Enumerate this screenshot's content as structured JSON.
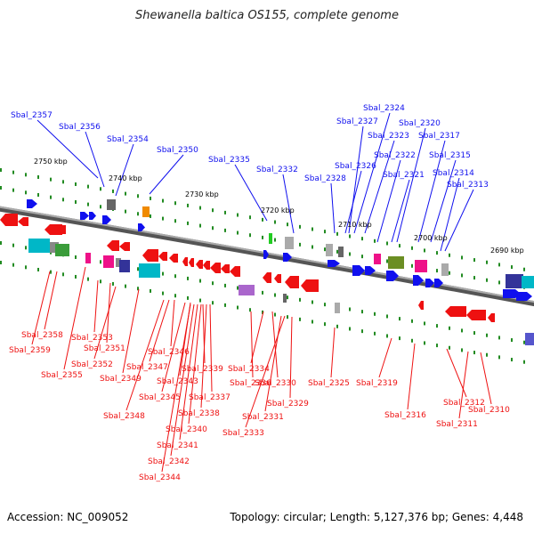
{
  "title": "Shewanella baltica OS155, complete genome",
  "footer": {
    "accession": "Accession: NC_009052",
    "summary": "Topology: circular; Length: 5,127,376 bp; Genes: 4,448"
  },
  "colors": {
    "forward": "#1010ee",
    "reverse": "#ee1111",
    "backbone": "#808080",
    "tick": "#228b22"
  },
  "scale": [
    "2750 kbp",
    "2740 kbp",
    "2730 kbp",
    "2720 kbp",
    "2710 kbp",
    "2700 kbp",
    "2690 kbp"
  ],
  "forward_labels": [
    "Sbal_2357",
    "Sbal_2356",
    "Sbal_2354",
    "Sbal_2350",
    "Sbal_2335",
    "Sbal_2332",
    "Sbal_2328",
    "Sbal_2327",
    "Sbal_2326",
    "Sbal_2324",
    "Sbal_2323",
    "Sbal_2322",
    "Sbal_2321",
    "Sbal_2320",
    "Sbal_2317",
    "Sbal_2315",
    "Sbal_2314",
    "Sbal_2313"
  ],
  "reverse_labels": [
    "Sbal_2358",
    "Sbal_2359",
    "Sbal_2353",
    "Sbal_2351",
    "Sbal_2352",
    "Sbal_2355",
    "Sbal_2349",
    "Sbal_2346",
    "Sbal_2347",
    "Sbal_2348",
    "Sbal_2343",
    "Sbal_2345",
    "Sbal_2339",
    "Sbal_2337",
    "Sbal_2338",
    "Sbal_2340",
    "Sbal_2341",
    "Sbal_2342",
    "Sbal_2344",
    "Sbal_2336",
    "Sbal_2334",
    "Sbal_2330",
    "Sbal_2331",
    "Sbal_2333",
    "Sbal_2329",
    "Sbal_2325",
    "Sbal_2319",
    "Sbal_2316",
    "Sbal_2312",
    "Sbal_2311",
    "Sbal_2310"
  ]
}
